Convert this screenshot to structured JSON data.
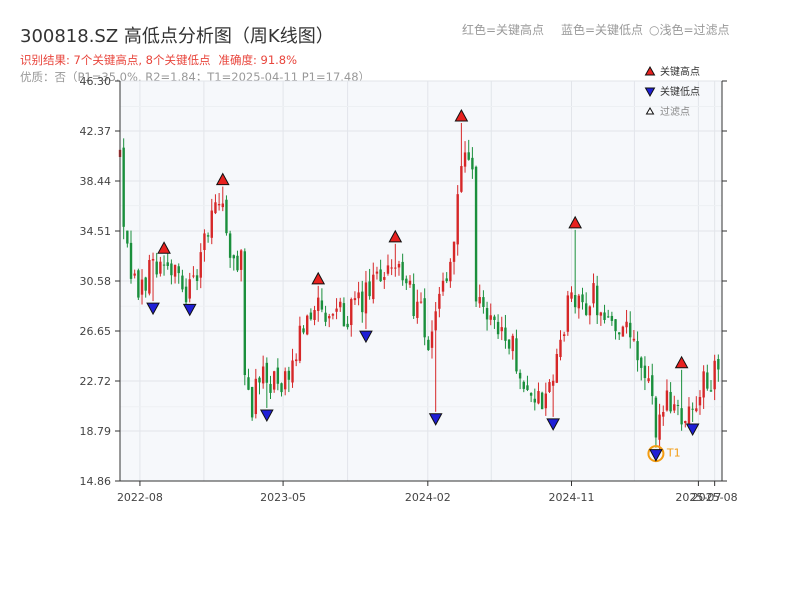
{
  "title": "300818.SZ 高低点分析图（周K线图）",
  "result_text": "识别结果: 7个关键高点, 8个关键低点",
  "accuracy_text": "准确度: 91.8%",
  "quality_text": "优质：否（P1=35.0%, R2=1.84；T1=2025-04-11 P1=17.48）",
  "header_legend": {
    "red": "红色=关键高点",
    "blue": "蓝色=关键低点",
    "light": "○浅色=过滤点"
  },
  "colors": {
    "up": "#d62728",
    "down": "#1a8f3c",
    "high_marker": "#e8211f",
    "low_marker": "#1f1fd6",
    "t1": "#f39c12",
    "plot_bg": "#f6f8fb",
    "grid": "#e2e5ea"
  },
  "chart_data": {
    "type": "candlestick",
    "y_ticks": [
      "14.86",
      "18.79",
      "22.72",
      "26.65",
      "30.58",
      "34.51",
      "38.44",
      "42.37",
      "46.30"
    ],
    "ylim": [
      14.86,
      46.3
    ],
    "x_ticks": [
      "2022-08",
      "2023-05",
      "2024-02",
      "2024-11",
      "2025-07",
      "2025-08"
    ],
    "xlim": [
      "2022-06-24",
      "2025-08-15"
    ],
    "legend": [
      {
        "label": "关键高点",
        "marker": "triangle-up",
        "color": "#e8211f"
      },
      {
        "label": "关键低点",
        "marker": "triangle-down",
        "color": "#1f1fd6"
      },
      {
        "label": "过滤点",
        "marker": "triangle-up-outline",
        "color": "#ffffff"
      }
    ],
    "anchors": [
      [
        "2022-06-24",
        40.5
      ],
      [
        "2022-07-01",
        34.0
      ],
      [
        "2022-07-15",
        31.0
      ],
      [
        "2022-07-29",
        29.5
      ],
      [
        "2022-08-19",
        31.5
      ],
      [
        "2022-09-09",
        32.5
      ],
      [
        "2022-09-30",
        31.5
      ],
      [
        "2022-10-21",
        30.0
      ],
      [
        "2022-11-11",
        30.0
      ],
      [
        "2022-12-02",
        33.5
      ],
      [
        "2022-12-30",
        37.5
      ],
      [
        "2023-01-20",
        32.0
      ],
      [
        "2023-02-10",
        32.5
      ],
      [
        "2023-02-17",
        22.5
      ],
      [
        "2023-03-03",
        21.0
      ],
      [
        "2023-03-24",
        23.5
      ],
      [
        "2023-04-14",
        22.5
      ],
      [
        "2023-05-12",
        22.3
      ],
      [
        "2023-06-09",
        27.5
      ],
      [
        "2023-06-30",
        29.0
      ],
      [
        "2023-07-21",
        27.0
      ],
      [
        "2023-08-11",
        28.0
      ],
      [
        "2023-08-25",
        28.0
      ],
      [
        "2023-09-22",
        28.5
      ],
      [
        "2023-10-27",
        30.5
      ],
      [
        "2023-11-24",
        32.5
      ],
      [
        "2023-12-22",
        30.0
      ],
      [
        "2024-01-19",
        28.0
      ],
      [
        "2024-02-02",
        24.0
      ],
      [
        "2024-02-16",
        29.0
      ],
      [
        "2024-03-15",
        31.5
      ],
      [
        "2024-04-05",
        40.0
      ],
      [
        "2024-04-26",
        38.5
      ],
      [
        "2024-05-03",
        29.0
      ],
      [
        "2024-05-31",
        28.0
      ],
      [
        "2024-06-21",
        27.0
      ],
      [
        "2024-07-19",
        24.5
      ],
      [
        "2024-08-16",
        21.5
      ],
      [
        "2024-09-13",
        21.0
      ],
      [
        "2024-10-04",
        24.0
      ],
      [
        "2024-10-25",
        29.0
      ],
      [
        "2024-11-15",
        28.5
      ],
      [
        "2024-12-13",
        29.5
      ],
      [
        "2025-01-10",
        27.5
      ],
      [
        "2025-02-07",
        27.0
      ],
      [
        "2025-03-07",
        24.5
      ],
      [
        "2025-03-28",
        22.0
      ],
      [
        "2025-04-11",
        19.0
      ],
      [
        "2025-05-02",
        21.5
      ],
      [
        "2025-05-23",
        20.5
      ],
      [
        "2025-06-13",
        20.5
      ],
      [
        "2025-07-04",
        22.0
      ],
      [
        "2025-08-08",
        23.5
      ]
    ],
    "key_highs": [
      {
        "date": "2022-09-16",
        "price": 32.6
      },
      {
        "date": "2023-01-06",
        "price": 38.0
      },
      {
        "date": "2023-07-07",
        "price": 30.2
      },
      {
        "date": "2023-12-01",
        "price": 33.5
      },
      {
        "date": "2024-04-05",
        "price": 43.0
      },
      {
        "date": "2024-11-08",
        "price": 34.6
      },
      {
        "date": "2025-05-30",
        "price": 23.6
      }
    ],
    "key_lows": [
      {
        "date": "2022-08-26",
        "price": 29.0
      },
      {
        "date": "2022-11-04",
        "price": 28.9
      },
      {
        "date": "2023-03-31",
        "price": 20.6
      },
      {
        "date": "2023-10-06",
        "price": 26.8
      },
      {
        "date": "2024-02-16",
        "price": 20.3
      },
      {
        "date": "2024-09-27",
        "price": 19.9
      },
      {
        "date": "2025-04-11",
        "price": 17.48,
        "label": "T1"
      },
      {
        "date": "2025-06-20",
        "price": 19.5
      }
    ]
  }
}
